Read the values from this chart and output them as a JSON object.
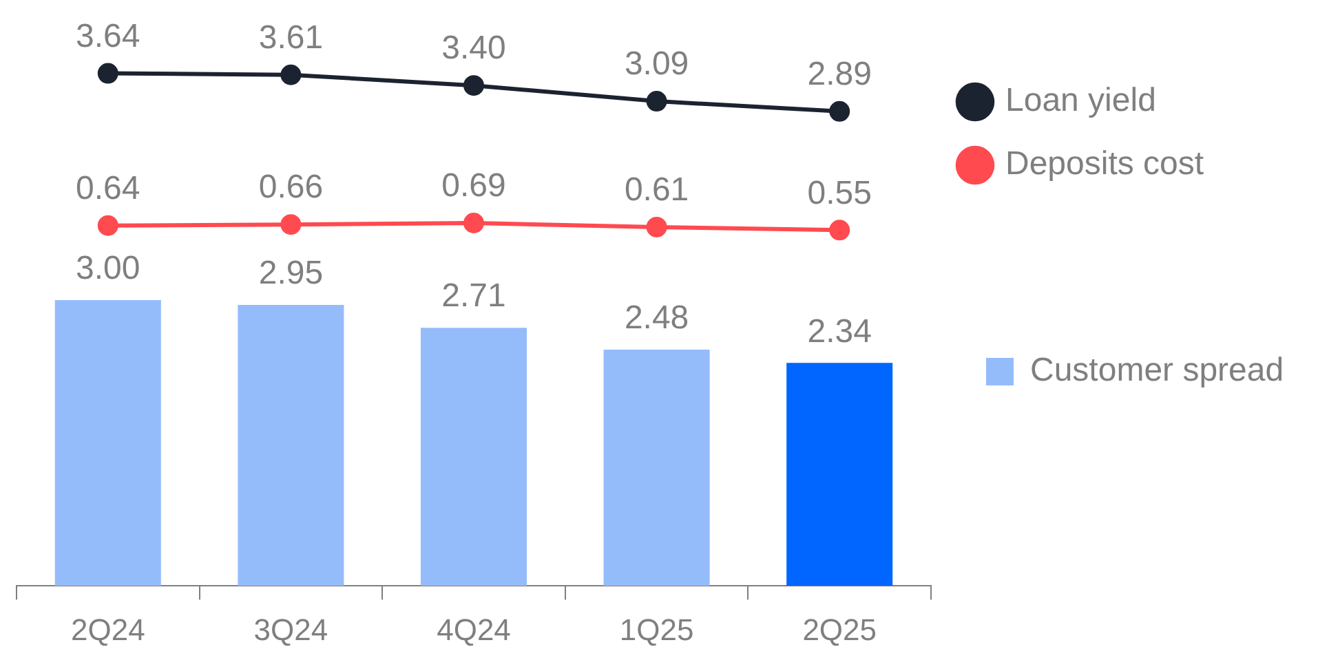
{
  "chart_data": [
    {
      "type": "line",
      "categories": [
        null,
        null,
        null,
        null,
        null
      ],
      "tick_labels": false,
      "legend": "right",
      "marker": "circle",
      "grid": false,
      "series": [
        {
          "name": "Loan yield",
          "color": "#1c2330",
          "values": [
            3.64,
            3.61,
            3.4,
            3.09,
            2.89
          ],
          "value_labels": [
            "3.64",
            "3.61",
            "3.40",
            "3.09",
            "2.89"
          ]
        },
        {
          "name": "Deposits cost",
          "color": "#ff4a4f",
          "values": [
            0.64,
            0.66,
            0.69,
            0.61,
            0.55
          ],
          "value_labels": [
            "0.64",
            "0.66",
            "0.69",
            "0.61",
            "0.55"
          ]
        }
      ]
    },
    {
      "type": "bar",
      "categories": [
        "2Q24",
        "3Q24",
        "4Q24",
        "1Q25",
        "2Q25"
      ],
      "tick_labels": "x",
      "legend": "right",
      "grid": false,
      "series": [
        {
          "name": "Customer spread",
          "color": "#94bcfb",
          "colors": [
            "#94bcfb",
            "#94bcfb",
            "#94bcfb",
            "#94bcfb",
            "#0066ff"
          ],
          "values": [
            3.0,
            2.95,
            2.71,
            2.48,
            2.34
          ],
          "value_labels": [
            "3.00",
            "2.95",
            "2.71",
            "2.48",
            "2.34"
          ]
        }
      ]
    }
  ]
}
